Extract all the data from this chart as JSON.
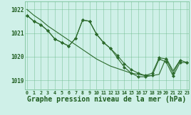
{
  "background_color": "#cff0e8",
  "grid_color": "#6bba8a",
  "line_color": "#2d6b2d",
  "marker_color": "#2d6b2d",
  "xlabel": "Graphe pression niveau de la mer (hPa)",
  "xlabel_fontsize": 7.0,
  "tick_label_color": "#1e5c1e",
  "axis_label_color": "#1e5c1e",
  "ylim_min": 1018.6,
  "ylim_max": 1022.35,
  "yticks": [
    1019,
    1020,
    1021,
    1022
  ],
  "xlim_min": -0.3,
  "xlim_max": 23.3,
  "xticks": [
    0,
    1,
    2,
    3,
    4,
    5,
    6,
    7,
    8,
    9,
    10,
    11,
    12,
    13,
    14,
    15,
    16,
    17,
    18,
    19,
    20,
    21,
    22,
    23
  ],
  "s1_x": [
    0,
    1,
    2,
    3,
    4,
    5,
    6,
    7,
    8,
    9,
    10,
    11,
    12,
    13,
    14,
    15,
    16,
    17,
    18,
    19,
    20,
    21,
    22
  ],
  "s1_y": [
    1022.0,
    1021.75,
    1021.55,
    1021.3,
    1021.1,
    1020.9,
    1020.7,
    1020.5,
    1020.3,
    1020.1,
    1019.9,
    1019.75,
    1019.6,
    1019.5,
    1019.4,
    1019.3,
    1019.25,
    1019.2,
    1019.2,
    1019.25,
    1019.95,
    1019.4,
    1019.85
  ],
  "s2_x": [
    0,
    1,
    2,
    3,
    4,
    5,
    6,
    7,
    8,
    9,
    10,
    11,
    12,
    13,
    14,
    15,
    16,
    17,
    18,
    19,
    20,
    21,
    22,
    23
  ],
  "s2_y": [
    1021.75,
    1021.5,
    1021.35,
    1021.1,
    1020.75,
    1020.6,
    1020.45,
    1020.78,
    1021.55,
    1021.5,
    1020.95,
    1020.6,
    1020.35,
    1020.05,
    1019.7,
    1019.45,
    1019.3,
    1019.2,
    1019.3,
    1019.95,
    1019.9,
    1019.3,
    1019.85,
    1019.75
  ],
  "s3_x": [
    0,
    1,
    2,
    3,
    4,
    5,
    6,
    7,
    8,
    9,
    10,
    11,
    12,
    13,
    14,
    15,
    16,
    17,
    18,
    19,
    20,
    21,
    22,
    23
  ],
  "s3_y": [
    1021.75,
    1021.5,
    1021.35,
    1021.1,
    1020.75,
    1020.6,
    1020.45,
    1020.78,
    1021.55,
    1021.5,
    1020.95,
    1020.6,
    1020.35,
    1019.95,
    1019.55,
    1019.3,
    1019.15,
    1019.15,
    1019.2,
    1019.9,
    1019.78,
    1019.18,
    1019.75,
    1019.75
  ]
}
